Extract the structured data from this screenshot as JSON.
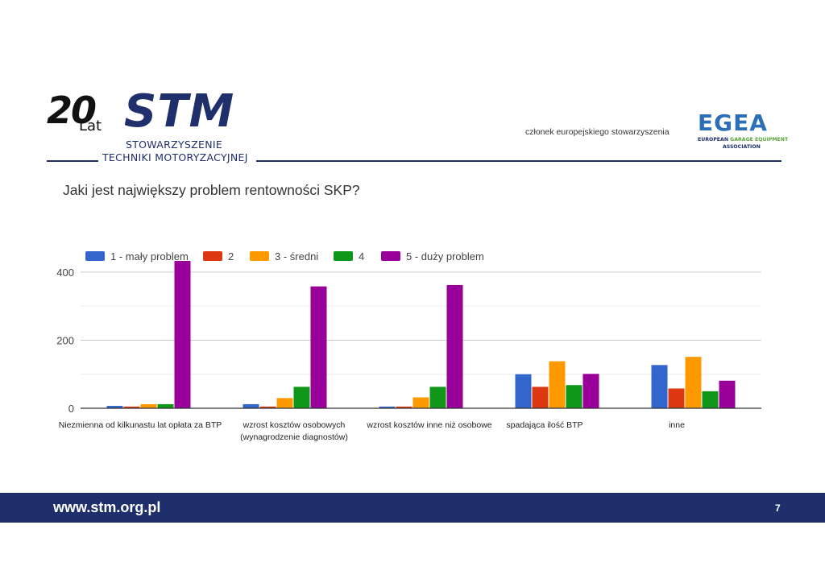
{
  "header": {
    "logo_anniversary": "20",
    "logo_lat": "Lat",
    "logo_stm": "STM",
    "logo_sub1": "STOWARZYSZENIE",
    "logo_sub2": "TECHNIKI MOTORYZACYJNEJ",
    "member_text": "członek europejskiego stowarzyszenia",
    "egea_logo": "EGEA",
    "egea_sub_european": "EUROPEAN",
    "egea_sub_garage": "GARAGE EQUIPMENT",
    "egea_sub_association": "ASSOCIATION"
  },
  "question": "Jaki jest największy problem rentowności SKP?",
  "chart_data": {
    "type": "bar",
    "categories": [
      [
        "Niezmienna od kilkunastu lat opłata za BTP"
      ],
      [
        "wzrost kosztów osobowych",
        "(wynagrodzenie diagnostów)"
      ],
      [
        "wzrost kosztów inne niż osobowe"
      ],
      [
        "spadająca ilość BTP"
      ],
      [
        "inne"
      ]
    ],
    "series": [
      {
        "name": "1 - mały problem",
        "color": "#3366cc",
        "values": [
          7,
          12,
          5,
          100,
          127
        ]
      },
      {
        "name": "2",
        "color": "#dc3912",
        "values": [
          5,
          5,
          5,
          63,
          58
        ]
      },
      {
        "name": "3 - średni",
        "color": "#ff9900",
        "values": [
          12,
          30,
          32,
          138,
          151
        ]
      },
      {
        "name": "4",
        "color": "#109618",
        "values": [
          12,
          63,
          63,
          68,
          50
        ]
      },
      {
        "name": "5 - duży problem",
        "color": "#990099",
        "values": [
          433,
          358,
          362,
          101,
          81
        ]
      }
    ],
    "yticks": [
      0,
      200,
      400
    ],
    "ylim": [
      0,
      440
    ],
    "grid": true,
    "legend_position": "top-left"
  },
  "footer": {
    "url": "www.stm.org.pl",
    "page_number": "7"
  }
}
